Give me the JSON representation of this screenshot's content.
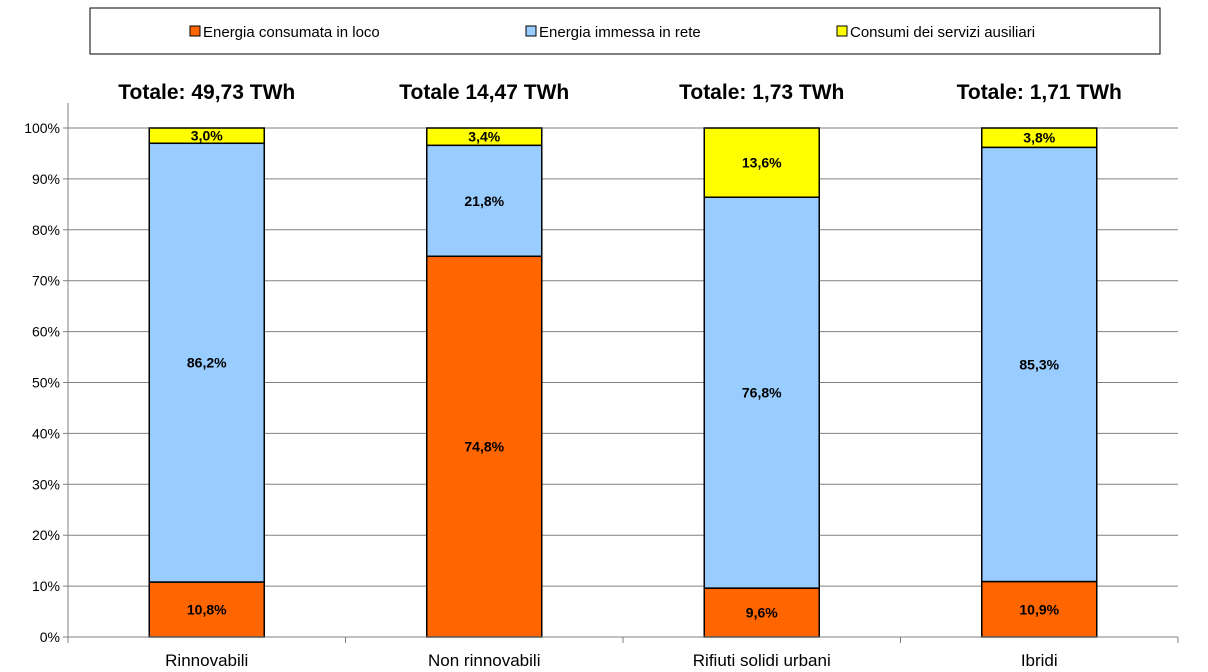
{
  "chart_data": {
    "type": "bar",
    "stacked": true,
    "percent": true,
    "categories": [
      "Rinnovabili",
      "Non rinnovabili",
      "Rifiuti solidi urbani",
      "Ibridi"
    ],
    "totals": [
      "Totale: 49,73 TWh",
      "Totale 14,47 TWh",
      "Totale: 1,73 TWh",
      "Totale: 1,71 TWh"
    ],
    "series": [
      {
        "name": "Energia consumata in loco",
        "color": "#ff6600",
        "values": [
          10.8,
          74.8,
          9.6,
          10.9
        ],
        "labels": [
          "10,8%",
          "74,8%",
          "9,6%",
          "10,9%"
        ]
      },
      {
        "name": "Energia immessa in rete",
        "color": "#99ccff",
        "values": [
          86.2,
          21.8,
          76.8,
          85.3
        ],
        "labels": [
          "86,2%",
          "21,8%",
          "76,8%",
          "85,3%"
        ]
      },
      {
        "name": "Consumi dei servizi ausiliari",
        "color": "#ffff00",
        "values": [
          3.0,
          3.4,
          13.6,
          3.8
        ],
        "labels": [
          "3,0%",
          "3,4%",
          "13,6%",
          "3,8%"
        ]
      }
    ],
    "yticks": [
      "0%",
      "10%",
      "20%",
      "30%",
      "40%",
      "50%",
      "60%",
      "70%",
      "80%",
      "90%",
      "100%"
    ],
    "ylim": [
      0,
      100
    ],
    "grid": true,
    "legend_position": "top"
  }
}
